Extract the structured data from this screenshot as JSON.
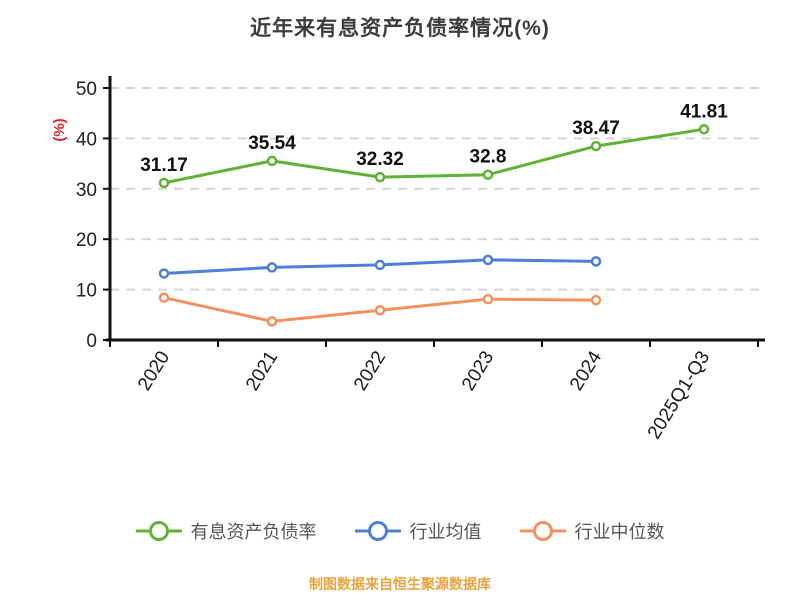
{
  "chart_data": {
    "type": "line",
    "title": "近年来有息资产负债率情况(%)",
    "ylabel": "(%)",
    "ylabel_color": "#e02424",
    "categories": [
      "2020",
      "2021",
      "2022",
      "2023",
      "2024",
      "2025Q1-Q3"
    ],
    "series": [
      {
        "name": "有息资产负债率",
        "color": "#5fb236",
        "values": [
          31.17,
          35.54,
          32.32,
          32.8,
          38.47,
          41.81
        ],
        "labels": [
          "31.17",
          "35.54",
          "32.32",
          "32.8",
          "38.47",
          "41.81"
        ]
      },
      {
        "name": "行业均值",
        "color": "#4f7ed8",
        "values": [
          13.2,
          14.4,
          14.9,
          15.9,
          15.6,
          null
        ]
      },
      {
        "name": "行业中位数",
        "color": "#f2915e",
        "values": [
          8.4,
          3.7,
          5.9,
          8.1,
          7.9,
          null
        ]
      }
    ],
    "ylim": [
      0,
      50
    ],
    "yticks": [
      0,
      10,
      20,
      30,
      40,
      50
    ],
    "grid": "dashed-horizontal",
    "legend_position": "bottom",
    "axis_color": "#111111",
    "grid_color": "#d4d4d4"
  },
  "footer": {
    "source": "制图数据来自恒生聚源数据库"
  }
}
